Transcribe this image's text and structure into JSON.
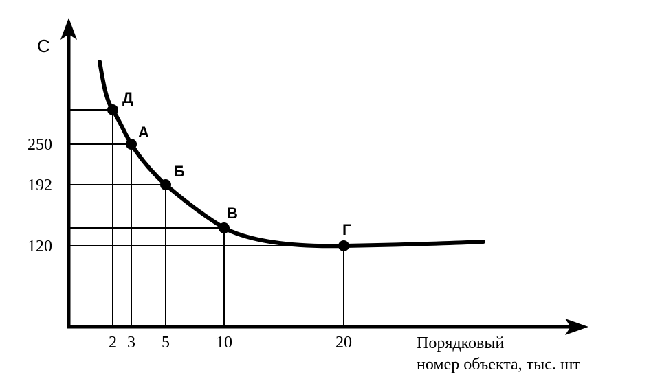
{
  "chart_data": {
    "type": "line",
    "title": "",
    "ylabel": "С",
    "xlabel_lines": [
      "Порядковый",
      "номер объекта, тыс. шт"
    ],
    "x_ticks": [
      "2",
      "3",
      "5",
      "10",
      "20"
    ],
    "y_ticks": [
      "250",
      "192",
      "120"
    ],
    "grid": false,
    "series": [
      {
        "points": [
          {
            "label": "Д",
            "x": 2,
            "y": 302
          },
          {
            "label": "А",
            "x": 3,
            "y": 250
          },
          {
            "label": "Б",
            "x": 5,
            "y": 192
          },
          {
            "label": "В",
            "x": 10,
            "y": 150
          },
          {
            "label": "Г",
            "x": 20,
            "y": 120
          }
        ]
      }
    ]
  }
}
